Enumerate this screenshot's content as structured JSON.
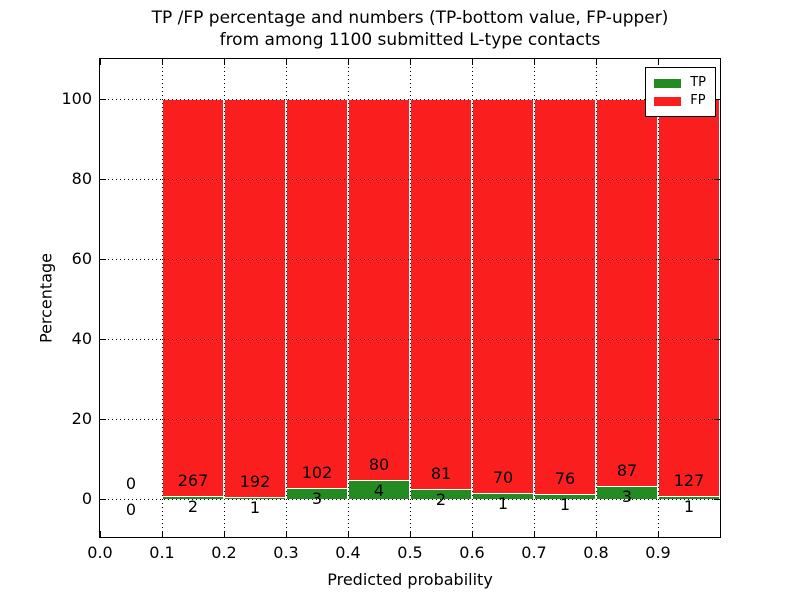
{
  "figure": {
    "background": "#ffffff",
    "title_lines": [
      "TP /FP percentage and numbers (TP-bottom value, FP-upper)",
      "from among 1100 submitted L-type contacts"
    ]
  },
  "chart_data": {
    "type": "bar",
    "stacked": true,
    "normalized": "each bar totals 100 percent; green segment = TP share, red segment = FP share",
    "title": "TP /FP percentage and numbers (TP-bottom value, FP-upper)\nfrom among 1100 submitted L-type contacts",
    "xlabel": "Predicted probability",
    "ylabel": "Percentage",
    "xlim": [
      0.0,
      1.0
    ],
    "ylim": [
      -9.5,
      110
    ],
    "grid": {
      "style": "dotted",
      "color": "#000000",
      "on_top": true
    },
    "bar_width": 0.1,
    "colors": {
      "tp": "#228b22",
      "fp": "#fb1e1e",
      "bar_edge": "#ffffff"
    },
    "x_ticks": [
      {
        "value": 0.0,
        "label": "0.0"
      },
      {
        "value": 0.1,
        "label": "0.1"
      },
      {
        "value": 0.2,
        "label": "0.2"
      },
      {
        "value": 0.3,
        "label": "0.3"
      },
      {
        "value": 0.4,
        "label": "0.4"
      },
      {
        "value": 0.5,
        "label": "0.5"
      },
      {
        "value": 0.6,
        "label": "0.6"
      },
      {
        "value": 0.7,
        "label": "0.7"
      },
      {
        "value": 0.8,
        "label": "0.8"
      },
      {
        "value": 0.9,
        "label": "0.9"
      }
    ],
    "y_ticks": [
      {
        "value": 0,
        "label": "0"
      },
      {
        "value": 20,
        "label": "20"
      },
      {
        "value": 40,
        "label": "40"
      },
      {
        "value": 60,
        "label": "60"
      },
      {
        "value": 80,
        "label": "80"
      },
      {
        "value": 100,
        "label": "100"
      }
    ],
    "legend": {
      "position": "upper right",
      "entries": [
        {
          "label": "TP",
          "color": "#228b22"
        },
        {
          "label": "FP",
          "color": "#fb1e1e"
        }
      ]
    },
    "bins": [
      {
        "x_start": 0.0,
        "x_end": 0.1,
        "tp": 0,
        "fp": 0
      },
      {
        "x_start": 0.1,
        "x_end": 0.2,
        "tp": 2,
        "fp": 267
      },
      {
        "x_start": 0.2,
        "x_end": 0.3,
        "tp": 1,
        "fp": 192
      },
      {
        "x_start": 0.3,
        "x_end": 0.4,
        "tp": 3,
        "fp": 102
      },
      {
        "x_start": 0.4,
        "x_end": 0.5,
        "tp": 4,
        "fp": 80
      },
      {
        "x_start": 0.5,
        "x_end": 0.6,
        "tp": 2,
        "fp": 81
      },
      {
        "x_start": 0.6,
        "x_end": 0.7,
        "tp": 1,
        "fp": 70
      },
      {
        "x_start": 0.7,
        "x_end": 0.8,
        "tp": 1,
        "fp": 76
      },
      {
        "x_start": 0.8,
        "x_end": 0.9,
        "tp": 3,
        "fp": 87
      },
      {
        "x_start": 0.9,
        "x_end": 1.0,
        "tp": 1,
        "fp": 127
      }
    ],
    "value_labels": {
      "upper_number": "fp count (above green top)",
      "lower_number": "tp count (below green top)"
    }
  }
}
